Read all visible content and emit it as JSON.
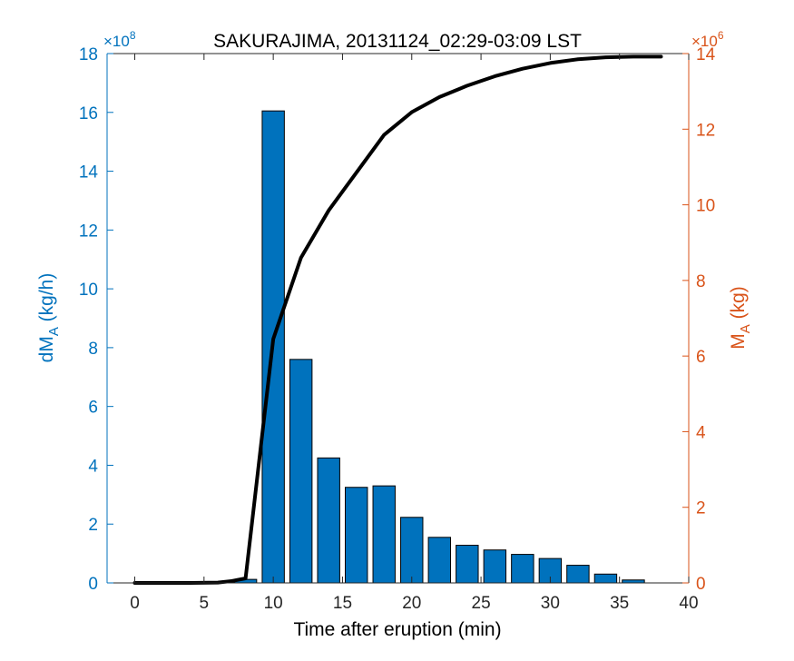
{
  "chart_data": {
    "type": "bar",
    "title": "SAKURAJIMA, 20131124_02:29-03:09 LST",
    "xlabel": "Time after eruption (min)",
    "xlim": [
      -2,
      40
    ],
    "xticks": [
      0,
      5,
      10,
      15,
      20,
      25,
      30,
      35,
      40
    ],
    "left_axis": {
      "label_main": "dM",
      "label_sub": "A",
      "label_unit": " (kg/h)",
      "color": "#0072BD",
      "ylim": [
        0,
        18
      ],
      "ticks": [
        0,
        2,
        4,
        6,
        8,
        10,
        12,
        14,
        16,
        18
      ],
      "exponent_prefix": "×10",
      "exponent": "8"
    },
    "right_axis": {
      "label_main": "M",
      "label_sub": "A",
      "label_unit": " (kg)",
      "color": "#D95319",
      "ylim": [
        0,
        14
      ],
      "ticks": [
        0,
        2,
        4,
        6,
        8,
        10,
        12,
        14
      ],
      "exponent_prefix": "×10",
      "exponent": "6"
    },
    "series": [
      {
        "axis": "left",
        "type": "bar",
        "color": "#0072BD",
        "bar_width": 1.6,
        "x": [
          0,
          2,
          4,
          6,
          8,
          10,
          12,
          14,
          16,
          18,
          20,
          22,
          24,
          26,
          28,
          30,
          32,
          34,
          36
        ],
        "values": [
          0,
          0,
          0,
          0,
          0.12,
          16.05,
          7.6,
          4.25,
          3.25,
          3.3,
          2.23,
          1.55,
          1.28,
          1.12,
          0.97,
          0.83,
          0.6,
          0.3,
          0.1
        ]
      },
      {
        "axis": "right",
        "type": "line",
        "color": "#000000",
        "x": [
          0,
          2,
          4,
          6,
          7,
          8,
          10,
          12,
          14,
          16,
          18,
          20,
          22,
          24,
          26,
          28,
          30,
          32,
          34,
          36,
          38
        ],
        "values": [
          0,
          0,
          0,
          0.01,
          0.05,
          0.12,
          6.45,
          8.6,
          9.85,
          10.85,
          11.85,
          12.45,
          12.85,
          13.15,
          13.4,
          13.6,
          13.75,
          13.85,
          13.9,
          13.92,
          13.92
        ]
      }
    ]
  }
}
